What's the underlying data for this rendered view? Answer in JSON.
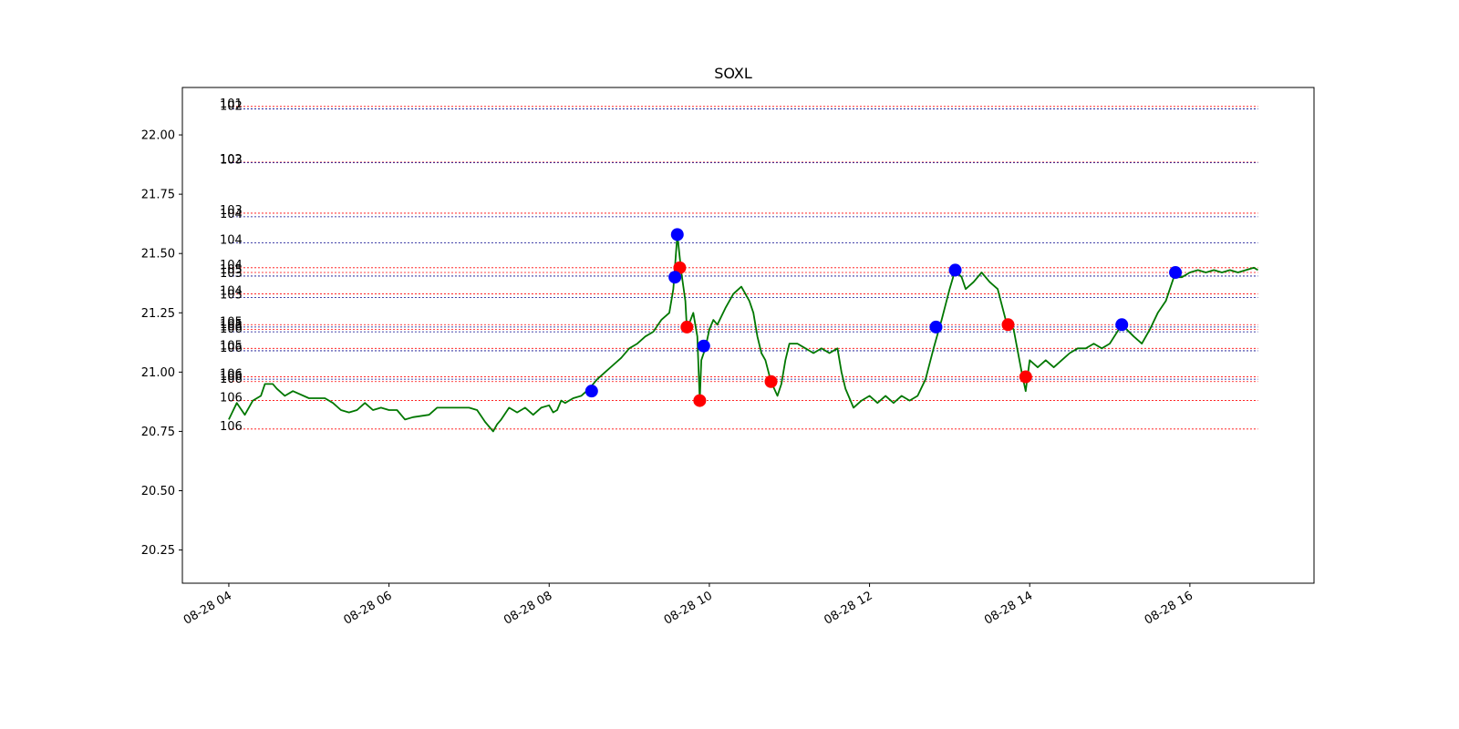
{
  "chart_data": {
    "type": "line",
    "title": "SOXL",
    "xlabel": "",
    "ylabel": "",
    "x_range_hours": [
      3.42,
      17.55
    ],
    "ylim": [
      20.11,
      22.2
    ],
    "x_ticks": [
      {
        "hour": 4,
        "label": "08-28 04"
      },
      {
        "hour": 6,
        "label": "08-28 06"
      },
      {
        "hour": 8,
        "label": "08-28 08"
      },
      {
        "hour": 10,
        "label": "08-28 10"
      },
      {
        "hour": 12,
        "label": "08-28 12"
      },
      {
        "hour": 14,
        "label": "08-28 14"
      },
      {
        "hour": 16,
        "label": "08-28 16"
      }
    ],
    "y_ticks": [
      {
        "value": 20.25,
        "label": "20.25"
      },
      {
        "value": 20.5,
        "label": "20.50"
      },
      {
        "value": 20.75,
        "label": "20.75"
      },
      {
        "value": 21.0,
        "label": "21.00"
      },
      {
        "value": 21.25,
        "label": "21.25"
      },
      {
        "value": 21.5,
        "label": "21.50"
      },
      {
        "value": 21.75,
        "label": "21.75"
      },
      {
        "value": 22.0,
        "label": "22.00"
      }
    ],
    "grid": false,
    "colors": {
      "price_line": "#007700",
      "buy": "#0000ff",
      "sell": "#ff0000",
      "red_level": "#ff0000",
      "blue_level": "#00008b"
    },
    "levels_x_range_hours": [
      4.0,
      16.85
    ],
    "levels": [
      {
        "price": 22.12,
        "label": "101",
        "color": "red"
      },
      {
        "price": 22.11,
        "label": "102",
        "color": "blue"
      },
      {
        "price": 21.885,
        "label": "102",
        "color": "red"
      },
      {
        "price": 21.883,
        "label": "103",
        "color": "blue"
      },
      {
        "price": 21.67,
        "label": "103",
        "color": "red"
      },
      {
        "price": 21.655,
        "label": "104",
        "color": "blue"
      },
      {
        "price": 21.545,
        "label": "104",
        "color": "blue"
      },
      {
        "price": 21.44,
        "label": "104",
        "color": "red"
      },
      {
        "price": 21.42,
        "label": "105",
        "color": "red"
      },
      {
        "price": 21.405,
        "label": "103",
        "color": "blue"
      },
      {
        "price": 21.33,
        "label": "104",
        "color": "red"
      },
      {
        "price": 21.315,
        "label": "103",
        "color": "blue"
      },
      {
        "price": 21.2,
        "label": "105",
        "color": "red"
      },
      {
        "price": 21.19,
        "label": "105",
        "color": "blue"
      },
      {
        "price": 21.18,
        "label": "106",
        "color": "red"
      },
      {
        "price": 21.17,
        "label": "106",
        "color": "blue"
      },
      {
        "price": 21.1,
        "label": "105",
        "color": "red"
      },
      {
        "price": 21.09,
        "label": "106",
        "color": "blue"
      },
      {
        "price": 20.98,
        "label": "106",
        "color": "red"
      },
      {
        "price": 20.97,
        "label": "106",
        "color": "blue"
      },
      {
        "price": 20.96,
        "label": "106",
        "color": "red"
      },
      {
        "price": 20.88,
        "label": "106",
        "color": "red"
      },
      {
        "price": 20.76,
        "label": "106",
        "color": "red"
      }
    ],
    "buy_points": [
      {
        "hour": 8.53,
        "price": 20.92
      },
      {
        "hour": 9.57,
        "price": 21.4
      },
      {
        "hour": 9.6,
        "price": 21.58
      },
      {
        "hour": 9.93,
        "price": 21.11
      },
      {
        "hour": 12.83,
        "price": 21.19
      },
      {
        "hour": 13.07,
        "price": 21.43
      },
      {
        "hour": 15.15,
        "price": 21.2
      },
      {
        "hour": 15.82,
        "price": 21.42
      }
    ],
    "sell_points": [
      {
        "hour": 9.63,
        "price": 21.44
      },
      {
        "hour": 9.72,
        "price": 21.19
      },
      {
        "hour": 9.88,
        "price": 20.88
      },
      {
        "hour": 10.77,
        "price": 20.96
      },
      {
        "hour": 13.73,
        "price": 21.2
      },
      {
        "hour": 13.95,
        "price": 20.98
      }
    ],
    "price_series": [
      [
        4.0,
        20.8
      ],
      [
        4.1,
        20.87
      ],
      [
        4.2,
        20.82
      ],
      [
        4.3,
        20.88
      ],
      [
        4.4,
        20.9
      ],
      [
        4.45,
        20.95
      ],
      [
        4.55,
        20.95
      ],
      [
        4.6,
        20.93
      ],
      [
        4.7,
        20.9
      ],
      [
        4.8,
        20.92
      ],
      [
        5.0,
        20.89
      ],
      [
        5.2,
        20.89
      ],
      [
        5.3,
        20.87
      ],
      [
        5.4,
        20.84
      ],
      [
        5.5,
        20.83
      ],
      [
        5.6,
        20.84
      ],
      [
        5.7,
        20.87
      ],
      [
        5.8,
        20.84
      ],
      [
        5.9,
        20.85
      ],
      [
        6.0,
        20.84
      ],
      [
        6.1,
        20.84
      ],
      [
        6.2,
        20.8
      ],
      [
        6.3,
        20.81
      ],
      [
        6.5,
        20.82
      ],
      [
        6.6,
        20.85
      ],
      [
        6.8,
        20.85
      ],
      [
        7.0,
        20.85
      ],
      [
        7.1,
        20.84
      ],
      [
        7.2,
        20.79
      ],
      [
        7.3,
        20.75
      ],
      [
        7.35,
        20.78
      ],
      [
        7.4,
        20.8
      ],
      [
        7.5,
        20.85
      ],
      [
        7.6,
        20.83
      ],
      [
        7.7,
        20.85
      ],
      [
        7.8,
        20.82
      ],
      [
        7.9,
        20.85
      ],
      [
        8.0,
        20.86
      ],
      [
        8.05,
        20.83
      ],
      [
        8.1,
        20.84
      ],
      [
        8.15,
        20.88
      ],
      [
        8.2,
        20.87
      ],
      [
        8.3,
        20.89
      ],
      [
        8.4,
        20.9
      ],
      [
        8.5,
        20.93
      ],
      [
        8.6,
        20.97
      ],
      [
        8.7,
        21.0
      ],
      [
        8.8,
        21.03
      ],
      [
        8.9,
        21.06
      ],
      [
        9.0,
        21.1
      ],
      [
        9.1,
        21.12
      ],
      [
        9.2,
        21.15
      ],
      [
        9.3,
        21.17
      ],
      [
        9.4,
        21.22
      ],
      [
        9.5,
        21.25
      ],
      [
        9.55,
        21.35
      ],
      [
        9.6,
        21.58
      ],
      [
        9.65,
        21.42
      ],
      [
        9.7,
        21.3
      ],
      [
        9.72,
        21.18
      ],
      [
        9.8,
        21.25
      ],
      [
        9.85,
        21.15
      ],
      [
        9.88,
        20.88
      ],
      [
        9.9,
        21.05
      ],
      [
        9.95,
        21.1
      ],
      [
        10.0,
        21.18
      ],
      [
        10.05,
        21.22
      ],
      [
        10.1,
        21.2
      ],
      [
        10.2,
        21.27
      ],
      [
        10.3,
        21.33
      ],
      [
        10.4,
        21.36
      ],
      [
        10.5,
        21.3
      ],
      [
        10.55,
        21.25
      ],
      [
        10.6,
        21.15
      ],
      [
        10.65,
        21.08
      ],
      [
        10.7,
        21.05
      ],
      [
        10.77,
        20.96
      ],
      [
        10.85,
        20.9
      ],
      [
        10.9,
        20.95
      ],
      [
        10.95,
        21.05
      ],
      [
        11.0,
        21.12
      ],
      [
        11.1,
        21.12
      ],
      [
        11.2,
        21.1
      ],
      [
        11.3,
        21.08
      ],
      [
        11.4,
        21.1
      ],
      [
        11.5,
        21.08
      ],
      [
        11.6,
        21.1
      ],
      [
        11.65,
        21.0
      ],
      [
        11.7,
        20.93
      ],
      [
        11.8,
        20.85
      ],
      [
        11.9,
        20.88
      ],
      [
        12.0,
        20.9
      ],
      [
        12.1,
        20.87
      ],
      [
        12.2,
        20.9
      ],
      [
        12.3,
        20.87
      ],
      [
        12.4,
        20.9
      ],
      [
        12.5,
        20.88
      ],
      [
        12.6,
        20.9
      ],
      [
        12.7,
        20.97
      ],
      [
        12.8,
        21.1
      ],
      [
        12.9,
        21.22
      ],
      [
        13.0,
        21.35
      ],
      [
        13.07,
        21.43
      ],
      [
        13.15,
        21.4
      ],
      [
        13.2,
        21.35
      ],
      [
        13.3,
        21.38
      ],
      [
        13.4,
        21.42
      ],
      [
        13.5,
        21.38
      ],
      [
        13.6,
        21.35
      ],
      [
        13.7,
        21.22
      ],
      [
        13.8,
        21.18
      ],
      [
        13.9,
        21.0
      ],
      [
        13.95,
        20.92
      ],
      [
        14.0,
        21.05
      ],
      [
        14.1,
        21.02
      ],
      [
        14.2,
        21.05
      ],
      [
        14.3,
        21.02
      ],
      [
        14.4,
        21.05
      ],
      [
        14.5,
        21.08
      ],
      [
        14.6,
        21.1
      ],
      [
        14.7,
        21.1
      ],
      [
        14.8,
        21.12
      ],
      [
        14.9,
        21.1
      ],
      [
        15.0,
        21.12
      ],
      [
        15.15,
        21.2
      ],
      [
        15.3,
        21.15
      ],
      [
        15.4,
        21.12
      ],
      [
        15.5,
        21.18
      ],
      [
        15.6,
        21.25
      ],
      [
        15.7,
        21.3
      ],
      [
        15.8,
        21.4
      ],
      [
        15.9,
        21.4
      ],
      [
        16.0,
        21.42
      ],
      [
        16.1,
        21.43
      ],
      [
        16.2,
        21.42
      ],
      [
        16.3,
        21.43
      ],
      [
        16.4,
        21.42
      ],
      [
        16.5,
        21.43
      ],
      [
        16.6,
        21.42
      ],
      [
        16.7,
        21.43
      ],
      [
        16.8,
        21.44
      ],
      [
        16.85,
        21.43
      ]
    ]
  }
}
